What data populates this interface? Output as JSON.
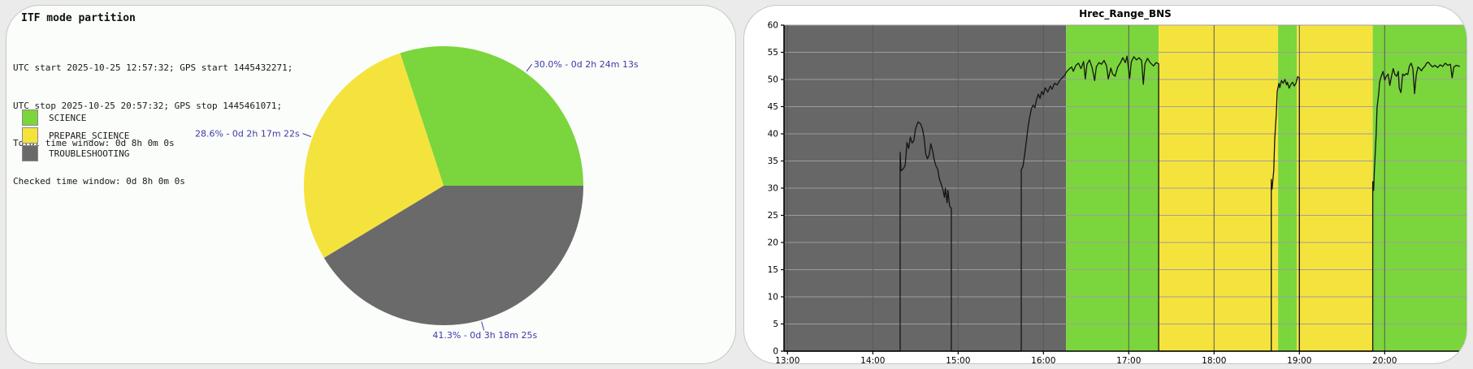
{
  "left_panel": {
    "title": "ITF mode partition",
    "info_lines": [
      "UTC start 2025-10-25 12:57:32; GPS start 1445432271;",
      "UTC stop 2025-10-25 20:57:32; GPS stop 1445461071;",
      "Total time window: 0d 8h 0m 0s",
      "Checked time window: 0d 8h 0m 0s"
    ],
    "legend": [
      {
        "label": "SCIENCE",
        "color": "#7bd53c"
      },
      {
        "label": "PREPARE_SCIENCE",
        "color": "#f5e33d"
      },
      {
        "label": "TROUBLESHOOTING",
        "color": "#6b6a6b"
      }
    ],
    "annotation_color": "#3b3ba8"
  },
  "right_panel": {
    "title": "Hrec_Range_BNS"
  },
  "chart_data": [
    {
      "type": "pie",
      "title": "ITF mode partition",
      "direction": "counterclockwise",
      "start_angle_deg": 0,
      "slices": [
        {
          "label": "SCIENCE",
          "pct": 30.0,
          "duration": "0d 2h 24m 13s",
          "annotation": "30.0% - 0d 2h 24m 13s",
          "color": "#7bd53c"
        },
        {
          "label": "PREPARE_SCIENCE",
          "pct": 28.6,
          "duration": "0d 2h 17m 22s",
          "annotation": "28.6% - 0d 2h 17m 22s",
          "color": "#f5e33d"
        },
        {
          "label": "TROUBLESHOOTING",
          "pct": 41.3,
          "duration": "0d 3h 18m 25s",
          "annotation": "41.3% - 0d 3h 18m 25s",
          "color": "#6b6a6b"
        }
      ]
    },
    {
      "type": "line",
      "title": "Hrec_Range_BNS",
      "xlabel": "",
      "ylabel": "",
      "xlim": [
        12.9589,
        20.9589
      ],
      "ylim": [
        0,
        60
      ],
      "grid": true,
      "legend_position": "none",
      "yticks": [
        0,
        5,
        10,
        15,
        20,
        25,
        30,
        35,
        40,
        45,
        50,
        55,
        60
      ],
      "xticks": [
        {
          "t": 13,
          "label": "13:00"
        },
        {
          "t": 14,
          "label": "14:00"
        },
        {
          "t": 15,
          "label": "15:00"
        },
        {
          "t": 16,
          "label": "16:00"
        },
        {
          "t": 17,
          "label": "17:00"
        },
        {
          "t": 18,
          "label": "18:00"
        },
        {
          "t": 19,
          "label": "19:00"
        },
        {
          "t": 20,
          "label": "20:00"
        }
      ],
      "bands": [
        {
          "mode": "TROUBLESHOOTING",
          "from": 12.9589,
          "to": 16.2658,
          "color": "#676767"
        },
        {
          "mode": "SCIENCE",
          "from": 16.2658,
          "to": 17.35,
          "color": "#7bd53c"
        },
        {
          "mode": "PREPARE_SCIENCE",
          "from": 17.35,
          "to": 18.75,
          "color": "#f5e33d"
        },
        {
          "mode": "SCIENCE",
          "from": 18.75,
          "to": 18.97,
          "color": "#7bd53c"
        },
        {
          "mode": "PREPARE_SCIENCE",
          "from": 18.97,
          "to": 19.8594,
          "color": "#f5e33d"
        },
        {
          "mode": "SCIENCE",
          "from": 19.8594,
          "to": 20.9589,
          "color": "#7bd53c"
        }
      ],
      "colors": {
        "trace": "#141414",
        "grid_h": "#9e9e9e",
        "grid_v": "#5a5a5a",
        "axis": "#000000"
      },
      "series": [
        {
          "name": "Hrec_Range_BNS",
          "points": [
            [
              12.96,
              0
            ],
            [
              14.32,
              0
            ],
            [
              14.32,
              36.6
            ],
            [
              14.33,
              33.2
            ],
            [
              14.36,
              33.6
            ],
            [
              14.38,
              34.3
            ],
            [
              14.4,
              38.4
            ],
            [
              14.42,
              37.3
            ],
            [
              14.44,
              39.4
            ],
            [
              14.46,
              38.3
            ],
            [
              14.48,
              38.7
            ],
            [
              14.5,
              40.9
            ],
            [
              14.53,
              42.2
            ],
            [
              14.56,
              41.8
            ],
            [
              14.58,
              41.0
            ],
            [
              14.6,
              39.4
            ],
            [
              14.62,
              36.3
            ],
            [
              14.64,
              35.4
            ],
            [
              14.66,
              36.1
            ],
            [
              14.68,
              38.2
            ],
            [
              14.7,
              36.9
            ],
            [
              14.72,
              35.2
            ],
            [
              14.74,
              34.1
            ],
            [
              14.76,
              33.5
            ],
            [
              14.78,
              31.7
            ],
            [
              14.8,
              30.8
            ],
            [
              14.82,
              29.8
            ],
            [
              14.84,
              28.3
            ],
            [
              14.85,
              30.0
            ],
            [
              14.87,
              27.3
            ],
            [
              14.88,
              29.6
            ],
            [
              14.9,
              26.7
            ],
            [
              14.92,
              26.3
            ],
            [
              14.92,
              0
            ],
            [
              15.74,
              0
            ],
            [
              15.74,
              33.4
            ],
            [
              15.76,
              34.0
            ],
            [
              15.78,
              36.2
            ],
            [
              15.8,
              38.7
            ],
            [
              15.82,
              41.3
            ],
            [
              15.84,
              43.2
            ],
            [
              15.86,
              44.7
            ],
            [
              15.88,
              45.3
            ],
            [
              15.9,
              44.8
            ],
            [
              15.92,
              46.4
            ],
            [
              15.94,
              47.3
            ],
            [
              15.96,
              46.5
            ],
            [
              15.98,
              47.8
            ],
            [
              16.0,
              47.2
            ],
            [
              16.02,
              48.5
            ],
            [
              16.05,
              47.7
            ],
            [
              16.08,
              48.8
            ],
            [
              16.1,
              48.2
            ],
            [
              16.13,
              49.3
            ],
            [
              16.16,
              49.0
            ],
            [
              16.19,
              49.8
            ],
            [
              16.22,
              50.3
            ],
            [
              16.25,
              50.8
            ],
            [
              16.27,
              51.4
            ],
            [
              16.3,
              51.9
            ],
            [
              16.33,
              52.3
            ],
            [
              16.35,
              51.5
            ],
            [
              16.38,
              52.6
            ],
            [
              16.41,
              53.0
            ],
            [
              16.44,
              52.0
            ],
            [
              16.47,
              53.3
            ],
            [
              16.49,
              50.1
            ],
            [
              16.51,
              52.8
            ],
            [
              16.54,
              53.6
            ],
            [
              16.57,
              52.2
            ],
            [
              16.6,
              49.8
            ],
            [
              16.62,
              52.3
            ],
            [
              16.65,
              53.1
            ],
            [
              16.68,
              52.8
            ],
            [
              16.71,
              53.5
            ],
            [
              16.74,
              52.5
            ],
            [
              16.76,
              50.1
            ],
            [
              16.79,
              52.1
            ],
            [
              16.81,
              51.0
            ],
            [
              16.84,
              50.6
            ],
            [
              16.87,
              52.3
            ],
            [
              16.9,
              53.0
            ],
            [
              16.93,
              54.0
            ],
            [
              16.96,
              53.1
            ],
            [
              16.98,
              54.3
            ],
            [
              17.01,
              50.2
            ],
            [
              17.03,
              53.3
            ],
            [
              17.06,
              54.2
            ],
            [
              17.09,
              53.6
            ],
            [
              17.12,
              54.0
            ],
            [
              17.15,
              53.5
            ],
            [
              17.17,
              49.1
            ],
            [
              17.19,
              52.9
            ],
            [
              17.22,
              53.9
            ],
            [
              17.25,
              53.1
            ],
            [
              17.29,
              52.5
            ],
            [
              17.32,
              53.1
            ],
            [
              17.35,
              52.9
            ],
            [
              17.35,
              0
            ],
            [
              18.67,
              0
            ],
            [
              18.67,
              31.6
            ],
            [
              18.68,
              29.8
            ],
            [
              18.7,
              33.3
            ],
            [
              18.71,
              38.8
            ],
            [
              18.73,
              44.0
            ],
            [
              18.74,
              47.8
            ],
            [
              18.76,
              49.3
            ],
            [
              18.77,
              48.5
            ],
            [
              18.79,
              49.8
            ],
            [
              18.81,
              49.3
            ],
            [
              18.83,
              50.0
            ],
            [
              18.85,
              49.0
            ],
            [
              18.86,
              49.5
            ],
            [
              18.88,
              48.4
            ],
            [
              18.9,
              49.1
            ],
            [
              18.92,
              49.5
            ],
            [
              18.94,
              48.8
            ],
            [
              18.96,
              49.3
            ],
            [
              18.98,
              50.5
            ],
            [
              19.0,
              50.3
            ],
            [
              19.0,
              0
            ],
            [
              19.86,
              0
            ],
            [
              19.86,
              31.2
            ],
            [
              19.87,
              29.6
            ],
            [
              19.88,
              33.5
            ],
            [
              19.9,
              39.9
            ],
            [
              19.91,
              44.8
            ],
            [
              19.93,
              47.5
            ],
            [
              19.94,
              49.5
            ],
            [
              19.96,
              50.6
            ],
            [
              19.98,
              51.5
            ],
            [
              20.0,
              49.9
            ],
            [
              20.02,
              50.6
            ],
            [
              20.04,
              51.0
            ],
            [
              20.06,
              48.9
            ],
            [
              20.08,
              50.6
            ],
            [
              20.1,
              52.0
            ],
            [
              20.12,
              50.9
            ],
            [
              20.14,
              50.6
            ],
            [
              20.16,
              51.5
            ],
            [
              20.17,
              48.4
            ],
            [
              20.19,
              47.6
            ],
            [
              20.21,
              51.0
            ],
            [
              20.23,
              50.7
            ],
            [
              20.25,
              51.1
            ],
            [
              20.27,
              50.9
            ],
            [
              20.29,
              52.5
            ],
            [
              20.31,
              53.0
            ],
            [
              20.33,
              52.0
            ],
            [
              20.35,
              47.4
            ],
            [
              20.37,
              50.9
            ],
            [
              20.39,
              52.3
            ],
            [
              20.41,
              52.0
            ],
            [
              20.43,
              51.6
            ],
            [
              20.45,
              52.1
            ],
            [
              20.47,
              52.4
            ],
            [
              20.49,
              53.0
            ],
            [
              20.51,
              53.2
            ],
            [
              20.53,
              52.8
            ],
            [
              20.56,
              52.3
            ],
            [
              20.59,
              52.6
            ],
            [
              20.62,
              52.2
            ],
            [
              20.65,
              52.7
            ],
            [
              20.68,
              52.4
            ],
            [
              20.71,
              53.0
            ],
            [
              20.74,
              52.6
            ],
            [
              20.77,
              52.8
            ],
            [
              20.79,
              50.3
            ],
            [
              20.81,
              52.3
            ],
            [
              20.84,
              52.6
            ],
            [
              20.88,
              52.4
            ]
          ]
        }
      ]
    }
  ]
}
